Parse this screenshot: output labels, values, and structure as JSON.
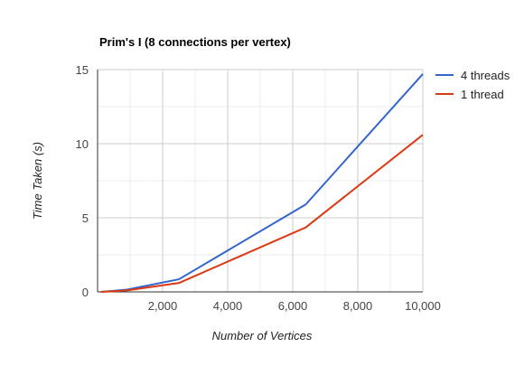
{
  "chart_data": {
    "type": "line",
    "title": "Prim's I (8 connections per vertex)",
    "xlabel": "Number of Vertices",
    "ylabel": "Time Taken (s)",
    "xlim": [
      0,
      10000
    ],
    "ylim": [
      0,
      15
    ],
    "x_ticks": [
      2000,
      4000,
      6000,
      8000,
      10000
    ],
    "x_tick_labels": [
      "2,000",
      "4,000",
      "6,000",
      "8,000",
      "10,000"
    ],
    "y_ticks": [
      0,
      5,
      10,
      15
    ],
    "y_tick_labels": [
      "0",
      "5",
      "10",
      "15"
    ],
    "grid": true,
    "legend_position": "right",
    "series": [
      {
        "name": "4 threads",
        "color": "#3366cc",
        "points": [
          {
            "x": 100,
            "y": 0
          },
          {
            "x": 900,
            "y": 0.15
          },
          {
            "x": 2500,
            "y": 0.85
          },
          {
            "x": 6400,
            "y": 5.9
          },
          {
            "x": 10000,
            "y": 14.7
          }
        ]
      },
      {
        "name": "1 thread",
        "color": "#dc3912",
        "points": [
          {
            "x": 100,
            "y": 0
          },
          {
            "x": 900,
            "y": 0.1
          },
          {
            "x": 2500,
            "y": 0.6
          },
          {
            "x": 6400,
            "y": 4.35
          },
          {
            "x": 10000,
            "y": 10.6
          }
        ]
      }
    ]
  }
}
